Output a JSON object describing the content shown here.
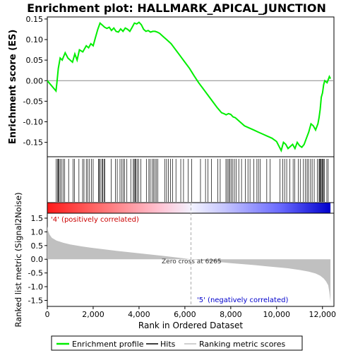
{
  "chart_data": {
    "type": "line",
    "title": "Enrichment plot: HALLMARK_APICAL_JUNCTION",
    "xlabel": "Rank in Ordered Dataset",
    "xlim": [
      0,
      12500
    ],
    "x_ticks": [
      {
        "value": 0,
        "label": "0"
      },
      {
        "value": 2000,
        "label": "2,000"
      },
      {
        "value": 4000,
        "label": "4,000"
      },
      {
        "value": 6000,
        "label": "6,000"
      },
      {
        "value": 8000,
        "label": "8,000"
      },
      {
        "value": 10000,
        "label": "10,000"
      },
      {
        "value": 12000,
        "label": "12,000"
      }
    ],
    "es_panel": {
      "ylabel": "Enrichment score (ES)",
      "ylim": [
        -0.185,
        0.155
      ],
      "y_ticks": [
        {
          "value": 0.15,
          "label": "0.15"
        },
        {
          "value": 0.1,
          "label": "0.10"
        },
        {
          "value": 0.05,
          "label": "0.05"
        },
        {
          "value": 0.0,
          "label": "0.00"
        },
        {
          "value": -0.05,
          "label": "-0.05"
        },
        {
          "value": -0.1,
          "label": "-0.10"
        },
        {
          "value": -0.15,
          "label": "-0.15"
        }
      ],
      "series": [
        {
          "name": "Enrichment profile",
          "color": "#00ee00",
          "x": [
            0,
            380,
            420,
            480,
            560,
            650,
            780,
            900,
            1100,
            1200,
            1300,
            1400,
            1550,
            1700,
            1800,
            1900,
            2000,
            2100,
            2200,
            2300,
            2400,
            2500,
            2600,
            2700,
            2800,
            2900,
            3000,
            3100,
            3200,
            3300,
            3400,
            3500,
            3600,
            3700,
            3800,
            3900,
            4000,
            4100,
            4200,
            4300,
            4400,
            4500,
            4600,
            4700,
            4800,
            4900,
            5000,
            5100,
            5200,
            5300,
            5400,
            5600,
            5800,
            6000,
            6200,
            6400,
            6600,
            6800,
            7000,
            7200,
            7400,
            7600,
            7700,
            7800,
            7900,
            8000,
            8100,
            8200,
            8400,
            8600,
            8800,
            9000,
            9200,
            9400,
            9600,
            9800,
            10000,
            10200,
            10300,
            10400,
            10500,
            10600,
            10700,
            10800,
            10900,
            11000,
            11100,
            11200,
            11300,
            11400,
            11500,
            11600,
            11700,
            11800,
            11850,
            11900,
            11950,
            12000,
            12050,
            12100,
            12200,
            12300,
            12350
          ],
          "y": [
            0.0,
            -0.025,
            -0.005,
            0.03,
            0.055,
            0.05,
            0.068,
            0.055,
            0.045,
            0.065,
            0.05,
            0.075,
            0.07,
            0.085,
            0.08,
            0.09,
            0.085,
            0.105,
            0.125,
            0.14,
            0.135,
            0.13,
            0.127,
            0.13,
            0.122,
            0.128,
            0.12,
            0.118,
            0.126,
            0.12,
            0.128,
            0.125,
            0.12,
            0.13,
            0.14,
            0.138,
            0.142,
            0.136,
            0.125,
            0.12,
            0.122,
            0.118,
            0.12,
            0.12,
            0.118,
            0.115,
            0.11,
            0.105,
            0.1,
            0.095,
            0.09,
            0.075,
            0.06,
            0.045,
            0.03,
            0.012,
            -0.005,
            -0.02,
            -0.035,
            -0.05,
            -0.065,
            -0.078,
            -0.08,
            -0.083,
            -0.08,
            -0.082,
            -0.088,
            -0.09,
            -0.1,
            -0.11,
            -0.115,
            -0.12,
            -0.125,
            -0.13,
            -0.135,
            -0.14,
            -0.148,
            -0.17,
            -0.15,
            -0.155,
            -0.165,
            -0.16,
            -0.155,
            -0.165,
            -0.15,
            -0.158,
            -0.162,
            -0.155,
            -0.14,
            -0.125,
            -0.105,
            -0.11,
            -0.12,
            -0.105,
            -0.09,
            -0.07,
            -0.04,
            -0.03,
            -0.01,
            0.0,
            -0.005,
            0.01,
            0.005
          ]
        }
      ],
      "baseline_y": 0.0
    },
    "hits_panel": {
      "hit_color": "#000000",
      "hits": [
        390,
        440,
        480,
        510,
        560,
        620,
        690,
        760,
        930,
        1120,
        1190,
        1380,
        1540,
        1600,
        1700,
        1760,
        1840,
        1920,
        2000,
        2230,
        2270,
        2310,
        2380,
        2410,
        2470,
        2510,
        2790,
        2970,
        3050,
        3170,
        3240,
        3310,
        3370,
        3470,
        3640,
        3750,
        3790,
        3830,
        3870,
        3920,
        3990,
        4080,
        4320,
        4430,
        4490,
        4570,
        4630,
        4690,
        4750,
        4820,
        5120,
        5200,
        5280,
        5370,
        5470,
        5610,
        5820,
        5940,
        6140,
        6300,
        6680,
        6900,
        7010,
        7160,
        7440,
        7540,
        7790,
        7850,
        7910,
        7960,
        8020,
        8090,
        8160,
        8240,
        8350,
        8470,
        8640,
        8750,
        8840,
        9010,
        9140,
        9210,
        9290,
        9570,
        9720,
        10150,
        10270,
        10350,
        10440,
        10580,
        10720,
        10790,
        10950,
        11030,
        11170,
        11260,
        11330,
        11390,
        11480,
        11550,
        11640,
        11780,
        11850,
        11880,
        11910,
        11940,
        11980,
        12010,
        12040,
        12090,
        12190,
        12250
      ]
    },
    "heatmap_bar": {
      "description_colors": [
        "#ff0000",
        "#ffffff",
        "#0000ff"
      ],
      "zero_cross_rank": 6265
    },
    "metric_panel": {
      "ylabel": "Ranked list metric (Signal2Noise)",
      "ylim": [
        -1.72,
        1.68
      ],
      "y_ticks": [
        {
          "value": 1.5,
          "label": "1.5"
        },
        {
          "value": 1.0,
          "label": "1.0"
        },
        {
          "value": 0.5,
          "label": "0.5"
        },
        {
          "value": 0.0,
          "label": "0.0"
        },
        {
          "value": -0.5,
          "label": "-0.5"
        },
        {
          "value": -1.0,
          "label": "-1.0"
        },
        {
          "value": -1.5,
          "label": "-1.5"
        }
      ],
      "fill_color": "#c0c0c0",
      "profile": {
        "x": [
          0,
          30,
          100,
          200,
          400,
          700,
          1000,
          1500,
          2000,
          3000,
          4000,
          5000,
          6000,
          6265,
          7000,
          8000,
          9000,
          10000,
          10500,
          11000,
          11400,
          11700,
          11900,
          12050,
          12150,
          12250,
          12300,
          12350
        ],
        "y": [
          1.2,
          1.05,
          0.9,
          0.78,
          0.68,
          0.6,
          0.54,
          0.47,
          0.41,
          0.31,
          0.22,
          0.13,
          0.03,
          0.0,
          -0.06,
          -0.14,
          -0.21,
          -0.29,
          -0.33,
          -0.39,
          -0.45,
          -0.52,
          -0.6,
          -0.7,
          -0.8,
          -0.95,
          -1.2,
          -1.55
        ]
      },
      "annotations": {
        "positive_label": "'4' (positively correlated)",
        "positive_color": "#cc0000",
        "negative_label": "'5' (negatively correlated)",
        "negative_color": "#0000cc",
        "zero_cross_label": "Zero cross at 6265"
      }
    },
    "legend": {
      "placement": "bottom",
      "entries": [
        {
          "label": "Enrichment profile",
          "color": "#00ee00",
          "style": "line"
        },
        {
          "label": "Hits",
          "color": "#000000",
          "style": "line"
        },
        {
          "label": "Ranking metric scores",
          "color": "#c0c0c0",
          "style": "line"
        }
      ]
    }
  }
}
